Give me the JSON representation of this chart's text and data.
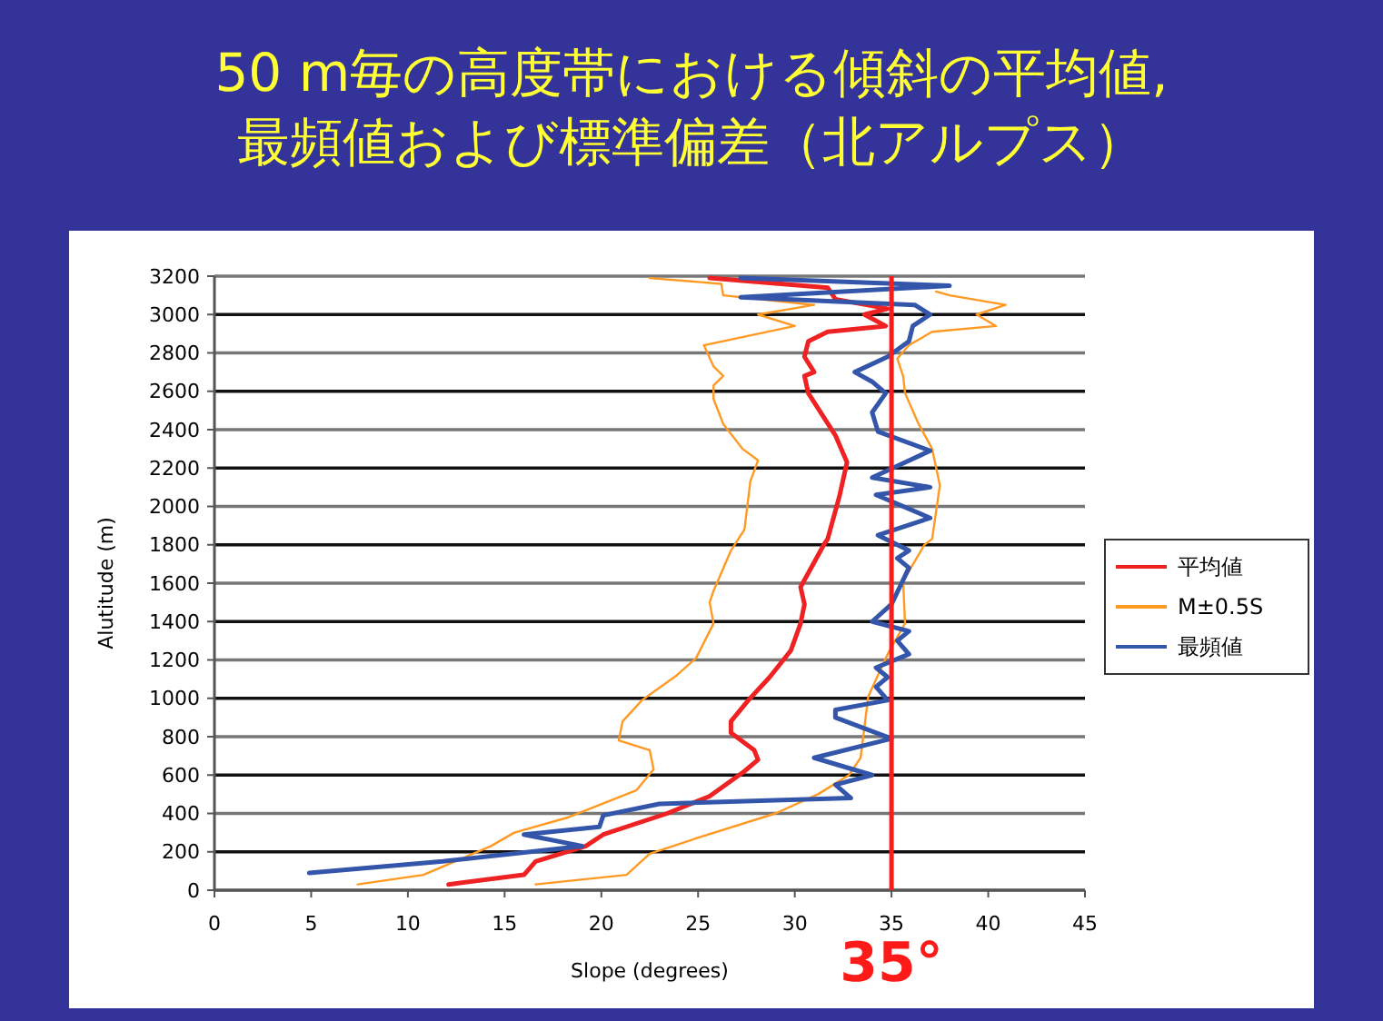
{
  "chart_data": {
    "type": "line",
    "title": "50 m毎の高度帯における傾斜の平均値,\n最頻値および標準偏差（北アルプス）",
    "xlabel": "Slope (degrees)",
    "ylabel": "Alutitude (m)",
    "xlim": [
      0,
      45
    ],
    "xticks": [
      0,
      5,
      10,
      15,
      20,
      25,
      30,
      35,
      40,
      45
    ],
    "ylim": [
      0,
      3200
    ],
    "yticks": [
      0,
      200,
      400,
      600,
      800,
      1000,
      1200,
      1400,
      1600,
      1800,
      2000,
      2200,
      2400,
      2600,
      2800,
      3000,
      3200
    ],
    "grid": "y",
    "legend": "right",
    "marker": "none",
    "line_style": "solid",
    "ref_lines": [
      {
        "axis": "x",
        "value": 35,
        "label": "35°",
        "color": "#ff1a1a"
      }
    ],
    "series": [
      {
        "name": "平均値",
        "color": "#ee2222",
        "x": [
          12.1,
          16.0,
          16.6,
          19.2,
          20.1,
          23.4,
          25.6,
          27.4,
          28.1,
          27.9,
          26.7,
          26.7,
          27.6,
          28.7,
          29.8,
          30.3,
          30.5,
          30.3,
          31.5,
          31.7,
          32.3,
          32.7,
          32.1,
          30.7,
          30.5,
          31.0,
          30.5,
          30.7,
          31.7,
          34.7,
          33.6,
          34.8,
          32.1,
          31.7,
          25.6
        ],
        "values": [
          30,
          80,
          150,
          230,
          290,
          400,
          490,
          620,
          680,
          730,
          820,
          880,
          990,
          1110,
          1250,
          1390,
          1490,
          1580,
          1800,
          1830,
          2050,
          2230,
          2370,
          2590,
          2680,
          2700,
          2780,
          2860,
          2910,
          2940,
          3000,
          3030,
          3080,
          3140,
          3190
        ]
      },
      {
        "name": "M±0.5S",
        "color": "#ff9922",
        "x": [
          7.4,
          10.8,
          14.3,
          15.5,
          18.3,
          21.8,
          22.7,
          22.5,
          20.9,
          21.1,
          22.1,
          23.9,
          24.9,
          25.8,
          25.6,
          25.8,
          26.7,
          27.4,
          27.7,
          28.1,
          27.3,
          26.3,
          25.8,
          25.8,
          26.3,
          25.8,
          25.3,
          30.0,
          28.1,
          31.0,
          26.3,
          26.2,
          22.5
        ],
        "values": [
          30,
          80,
          230,
          300,
          380,
          520,
          630,
          730,
          780,
          880,
          990,
          1120,
          1210,
          1390,
          1500,
          1560,
          1770,
          1880,
          2130,
          2240,
          2300,
          2430,
          2560,
          2630,
          2680,
          2730,
          2840,
          2940,
          3000,
          3050,
          3100,
          3160,
          3190
        ]
      },
      {
        "color": "#ff9922",
        "x": [
          16.6,
          21.3,
          22.5,
          24.9,
          29.0,
          31.2,
          32.8,
          33.4,
          33.8,
          34.8,
          35.7,
          35.6,
          36.7,
          37.1,
          37.5,
          37.1,
          36.4,
          35.7,
          35.6,
          35.3,
          35.9,
          37.1,
          40.4,
          39.4,
          40.9,
          38.0,
          37.3
        ],
        "values": [
          30,
          80,
          190,
          270,
          400,
          500,
          600,
          690,
          1010,
          1230,
          1390,
          1610,
          1800,
          1830,
          2110,
          2300,
          2430,
          2590,
          2680,
          2770,
          2840,
          2910,
          2940,
          3000,
          3050,
          3100,
          3120
        ]
      },
      {
        "name": "最頻値",
        "color": "#3355aa",
        "x": [
          4.9,
          11.8,
          19.0,
          16.0,
          19.9,
          20.1,
          23.0,
          32.9,
          32.1,
          34.0,
          31.0,
          35.0,
          32.1,
          32.1,
          34.8,
          34.2,
          34.8,
          34.2,
          35.9,
          35.3,
          35.9,
          34.0,
          35.0,
          35.9,
          35.3,
          35.9,
          34.3,
          37.0,
          34.2,
          37.0,
          34.0,
          37.0,
          34.3,
          34.0,
          34.7,
          34.0,
          33.1,
          34.8,
          35.9,
          36.1,
          37.0,
          36.2,
          27.2,
          38.0,
          27.2
        ],
        "values": [
          90,
          150,
          230,
          290,
          330,
          390,
          450,
          480,
          550,
          600,
          690,
          790,
          900,
          940,
          990,
          1060,
          1110,
          1160,
          1230,
          1300,
          1350,
          1400,
          1490,
          1680,
          1730,
          1770,
          1850,
          1940,
          2060,
          2100,
          2150,
          2290,
          2390,
          2490,
          2590,
          2650,
          2700,
          2780,
          2860,
          2940,
          3000,
          3050,
          3090,
          3150,
          3190
        ]
      }
    ]
  }
}
